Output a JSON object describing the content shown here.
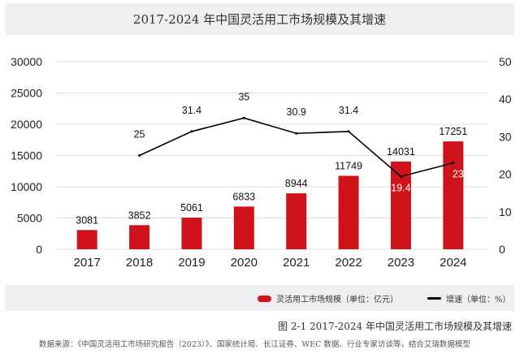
{
  "chart_data": {
    "type": "bar+line",
    "title": "2017-2024 年中国灵活用工市场规模及其增速",
    "categories": [
      "2017",
      "2018",
      "2019",
      "2020",
      "2021",
      "2022",
      "2023",
      "2024"
    ],
    "series": [
      {
        "name": "灵活用工市场规模（单位：亿元）",
        "type": "bar",
        "axis": "left",
        "values": [
          3081,
          3852,
          5061,
          6833,
          8944,
          11749,
          14031,
          17251
        ]
      },
      {
        "name": "增速（单位：%）",
        "type": "line",
        "axis": "right",
        "values": [
          null,
          25,
          31.4,
          35,
          30.9,
          31.4,
          19.4,
          23
        ]
      }
    ],
    "ylim_left": [
      0,
      30000
    ],
    "yticks_left": [
      "0",
      "5000",
      "10000",
      "15000",
      "20000",
      "25000",
      "30000"
    ],
    "ylim_right": [
      0,
      50
    ],
    "yticks_right": [
      "0",
      "10",
      "20",
      "30",
      "40",
      "50"
    ],
    "grid": true,
    "legend": "bottom-right",
    "colors": {
      "bar": "#d0121b",
      "line": "#000000"
    }
  },
  "legend": {
    "bar_label": "灵活用工市场规模（单位：亿元）",
    "line_label": "增速（单位：%）"
  },
  "caption": "图 2-1 2017-2024 年中国灵活用工市场规模及其增速",
  "source": "数据来源：《中国灵活用工市场研究报告（2023）》、国家统计局、长江证券、WEC 数据、行业专家访谈等，结合艾瑞数据模型"
}
